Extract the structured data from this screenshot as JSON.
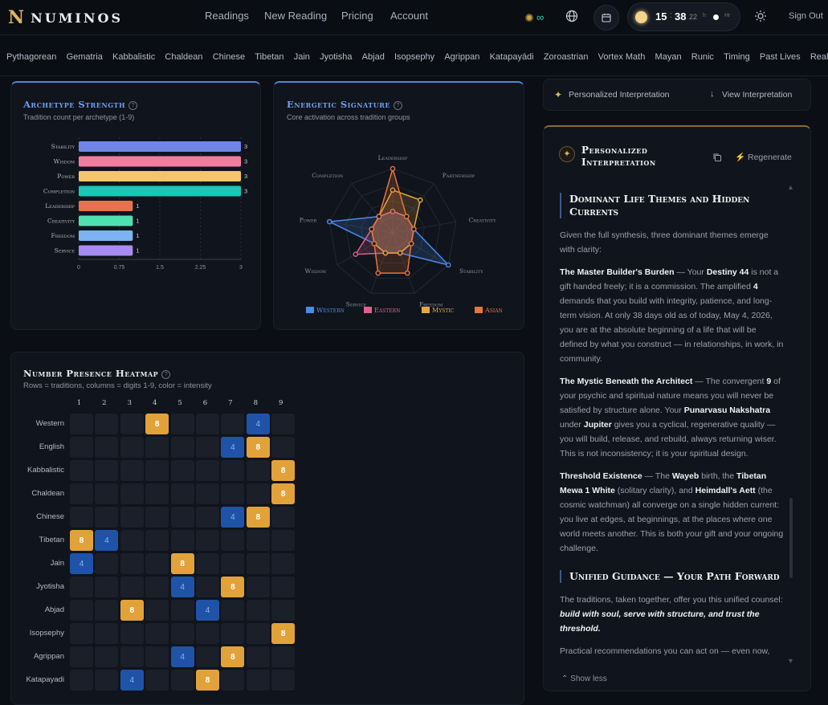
{
  "brand": {
    "name": "NUMINOS",
    "logo_icon": "numinos-logo-glyph"
  },
  "nav": {
    "readings": "Readings",
    "new_reading": "New Reading",
    "pricing": "Pricing",
    "account": "Account",
    "sign_out": "Sign Out"
  },
  "credits": {
    "icon": "coin-icon",
    "value": "∞"
  },
  "clock": {
    "hours": "15",
    "sep": ":",
    "minutes": "38",
    "seconds": "22",
    "label_a": "h",
    "label_b": "Hr"
  },
  "traditions": [
    "Pythagorean",
    "Gematria",
    "Kabbalistic",
    "Chaldean",
    "Chinese",
    "Tibetan",
    "Jain",
    "Jyotisha",
    "Abjad",
    "Isopsephy",
    "Agrippan",
    "Katapayādi",
    "Zoroastrian",
    "Vortex Math",
    "Mayan",
    "Runic",
    "Timing",
    "Past Lives",
    "Realit"
  ],
  "archetype": {
    "title": "Archetype Strength",
    "subtitle": "Tradition count per archetype (1-9)"
  },
  "energetic": {
    "title": "Energetic Signature",
    "subtitle": "Core activation across tradition groups"
  },
  "heatmap": {
    "title": "Number Presence Heatmap",
    "subtitle": "Rows = traditions, columns = digits 1-9, color = intensity",
    "columns": [
      "1",
      "2",
      "3",
      "4",
      "5",
      "6",
      "7",
      "8",
      "9"
    ],
    "rows": [
      {
        "label": "Western",
        "cells": {
          "4": "8",
          "8": "4"
        }
      },
      {
        "label": "English",
        "cells": {
          "7": "4",
          "8": "8"
        }
      },
      {
        "label": "Kabbalistic",
        "cells": {
          "9": "8"
        }
      },
      {
        "label": "Chaldean",
        "cells": {
          "9": "8"
        }
      },
      {
        "label": "Chinese",
        "cells": {
          "7": "4",
          "8": "8"
        }
      },
      {
        "label": "Tibetan",
        "cells": {
          "1": "8",
          "2": "4"
        }
      },
      {
        "label": "Jain",
        "cells": {
          "1": "4",
          "5": "8"
        }
      },
      {
        "label": "Jyotisha",
        "cells": {
          "5": "4",
          "7": "8"
        }
      },
      {
        "label": "Abjad",
        "cells": {
          "3": "8",
          "6": "4"
        }
      },
      {
        "label": "Isopsephy",
        "cells": {
          "9": "8"
        }
      },
      {
        "label": "Agrippan",
        "cells": {
          "5": "4",
          "7": "8"
        }
      },
      {
        "label": "Katapayadi",
        "cells": {
          "3": "4",
          "6": "8"
        }
      }
    ]
  },
  "interp_bar": {
    "label": "Personalized Interpretation",
    "view": "View Interpretation"
  },
  "interp": {
    "title_a": "Personalized",
    "title_b": "Interpretation",
    "regenerate": "Regenerate",
    "sec1": "Dominant Life Themes and Hidden Currents",
    "intro": "Given the full synthesis, three dominant themes emerge with clarity:",
    "p1_b": "The Master Builder's Burden",
    "p1_t1": " — Your ",
    "p1_b2": "Destiny 44",
    "p1_t2": " is not a gift handed freely; it is a commission. The amplified ",
    "p1_b3": "4",
    "p1_t3": " demands that you build with integrity, patience, and long-term vision. At only 38 days old as of today, May 4, 2026, you are at the absolute beginning of a life that will be defined by what you construct — in relationships, in work, in community.",
    "p2_b": "The Mystic Beneath the Architect",
    "p2_t1": " — The convergent ",
    "p2_b2": "9",
    "p2_t2": " of your psychic and spiritual nature means you will never be satisfied by structure alone. Your ",
    "p2_b3": "Punarvasu Nakshatra",
    "p2_t3": " under ",
    "p2_b4": "Jupiter",
    "p2_t4": " gives you a cyclical, regenerative quality — you will build, release, and rebuild, always returning wiser. This is not inconsistency; it is your spiritual design.",
    "p3_b": "Threshold Existence",
    "p3_t1": " — The ",
    "p3_b2": "Wayeb",
    "p3_t2": " birth, the ",
    "p3_b3": "Tibetan Mewa 1 White",
    "p3_t3": " (solitary clarity), and ",
    "p3_b4": "Heimdall's Aett",
    "p3_t4": " (the cosmic watchman) all converge on a single hidden current: you live at edges, at beginnings, at the places where one world meets another. This is both your gift and your ongoing challenge.",
    "sec2": "Unified Guidance — Your Path Forward",
    "g1": "The traditions, taken together, offer you this unified counsel: ",
    "g1_i": "build with soul, serve with structure, and trust the threshold.",
    "g2": "Practical recommendations you can act on — even now,",
    "show_less": "Show less"
  },
  "chart_data": [
    {
      "type": "bar",
      "orientation": "horizontal",
      "title": "Archetype Strength",
      "subtitle": "Tradition count per archetype (1-9)",
      "categories": [
        "Stability",
        "Wisdom",
        "Power",
        "Completion",
        "Leadership",
        "Creativity",
        "Freedom",
        "Service"
      ],
      "values": [
        3,
        3,
        3,
        3,
        1,
        1,
        1,
        1
      ],
      "colors": [
        "#6f86e8",
        "#f27ba0",
        "#f4c66a",
        "#19c7b6",
        "#e8714f",
        "#4fe0b0",
        "#7cb3f2",
        "#a68cf0"
      ],
      "xlim": [
        0,
        3
      ],
      "xticks": [
        "0",
        "0.75",
        "1.5",
        "2.25",
        "3"
      ],
      "grid": true
    },
    {
      "type": "radar",
      "title": "Energetic Signature",
      "subtitle": "Core activation across tradition groups",
      "axes": [
        "Leadership",
        "Partnership",
        "Creativity",
        "Stability",
        "Freedom",
        "Service",
        "Wisdom",
        "Power",
        "Completion"
      ],
      "series": [
        {
          "name": "Western",
          "color": "#4a8ae8",
          "values": [
            1,
            1,
            1,
            3,
            1,
            1,
            1,
            3,
            1
          ]
        },
        {
          "name": "Eastern",
          "color": "#e0608a",
          "values": [
            1,
            1,
            1,
            1,
            1,
            1,
            2,
            1,
            1
          ]
        },
        {
          "name": "Mystic",
          "color": "#e5a840",
          "values": [
            2,
            2,
            1,
            1,
            1,
            1,
            1,
            1,
            1
          ]
        },
        {
          "name": "Asian",
          "color": "#e8753a",
          "values": [
            3,
            1,
            1,
            1,
            2,
            2,
            1,
            1,
            1
          ]
        }
      ],
      "rmax": 3,
      "legend": "bottom"
    }
  ]
}
